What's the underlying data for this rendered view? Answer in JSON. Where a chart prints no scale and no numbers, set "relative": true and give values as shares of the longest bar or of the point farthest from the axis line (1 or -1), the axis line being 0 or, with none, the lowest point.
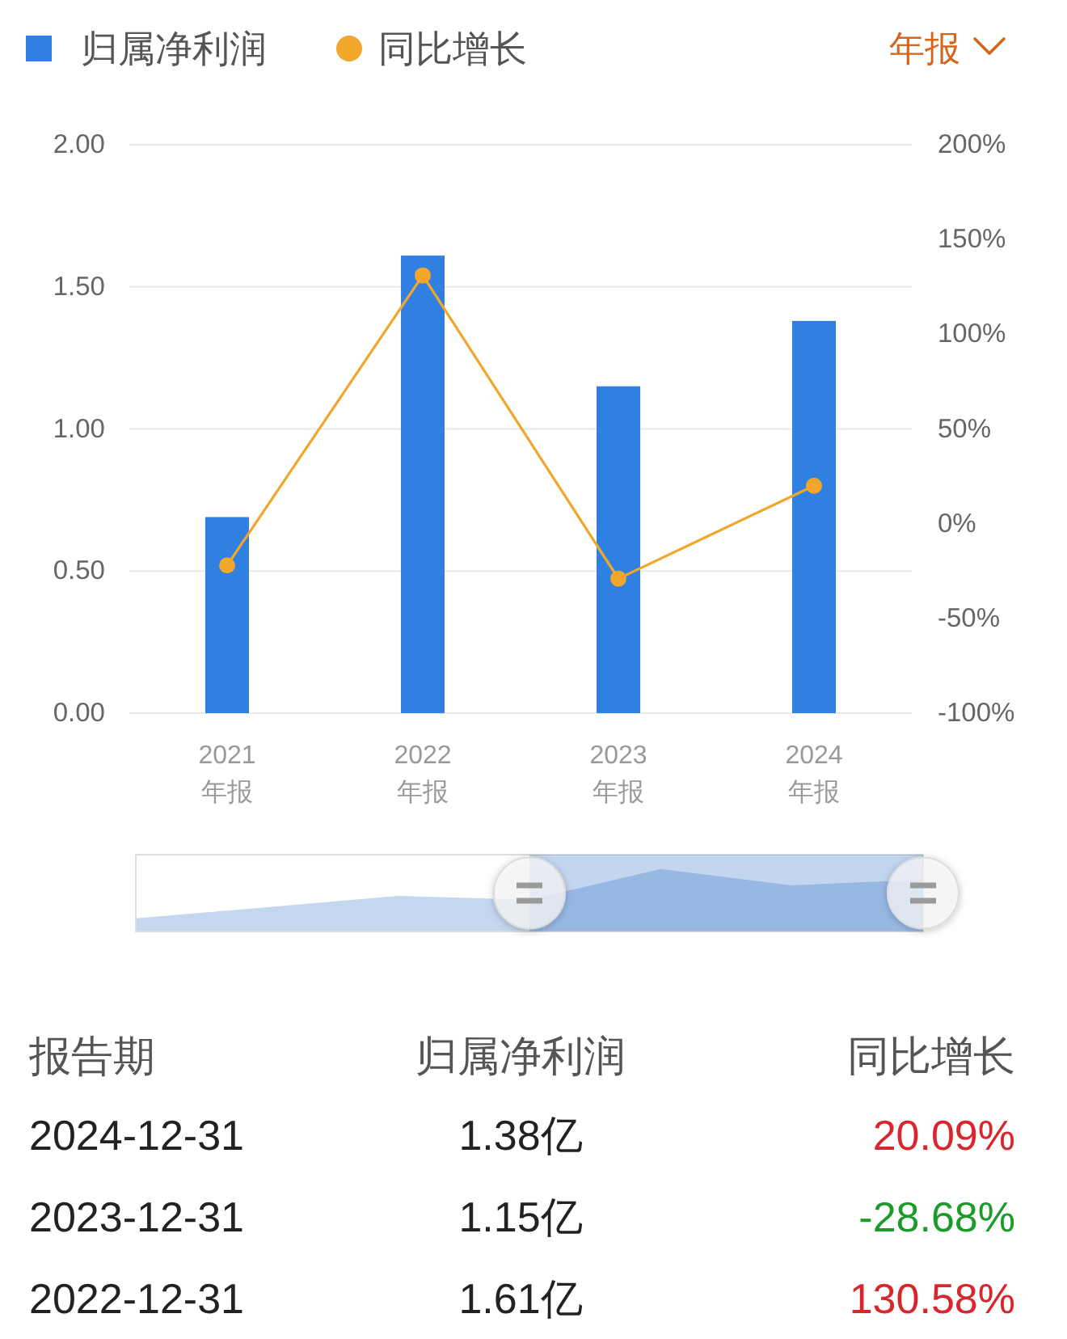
{
  "chart_data": [
    {
      "type": "bar",
      "categories": [
        "2021\n年报",
        "2022\n年报",
        "2023\n年报",
        "2024\n年报"
      ],
      "series": [
        {
          "name": "归属净利润",
          "color": "#2f80e1",
          "values": [
            0.69,
            1.61,
            1.15,
            1.38
          ]
        },
        {
          "name": "同比增长",
          "type": "line",
          "axis": "y2",
          "color": "#f2a62c",
          "marker": "circle",
          "values": [
            -22,
            131,
            -29,
            20
          ]
        }
      ],
      "ylim": [
        0,
        2
      ],
      "yticks": [
        {
          "value": 0,
          "label": "0.00"
        },
        {
          "value": 0.5,
          "label": "0.50"
        },
        {
          "value": 1,
          "label": "1.00"
        },
        {
          "value": 1.5,
          "label": "1.50"
        },
        {
          "value": 2,
          "label": "2.00"
        }
      ],
      "y2lim": [
        -100,
        200
      ],
      "y2ticks": [
        {
          "value": -100,
          "label": "-100%"
        },
        {
          "value": -50,
          "label": "-50%"
        },
        {
          "value": 0,
          "label": "0%"
        },
        {
          "value": 50,
          "label": "50%"
        },
        {
          "value": 100,
          "label": "100%"
        },
        {
          "value": 150,
          "label": "150%"
        },
        {
          "value": 200,
          "label": "200%"
        }
      ],
      "grid": "y",
      "legend": "top left",
      "annotations": [
        "年报",
        "报告期",
        "归属净利润",
        "同比增长",
        "2024-12-31",
        "1.38亿",
        "20.09%",
        "2023-12-31",
        "1.15亿",
        "-28.68%",
        "2022-12-31",
        "1.61亿",
        "130.58%"
      ]
    },
    {
      "type": "area",
      "categories": [
        null,
        null,
        null,
        null,
        null,
        null,
        null
      ],
      "relative": true,
      "values": [
        0.21,
        0.39,
        0.57,
        0.51,
        1,
        0.74,
        0.83
      ],
      "color": "#c5d7ef"
    }
  ]
}
